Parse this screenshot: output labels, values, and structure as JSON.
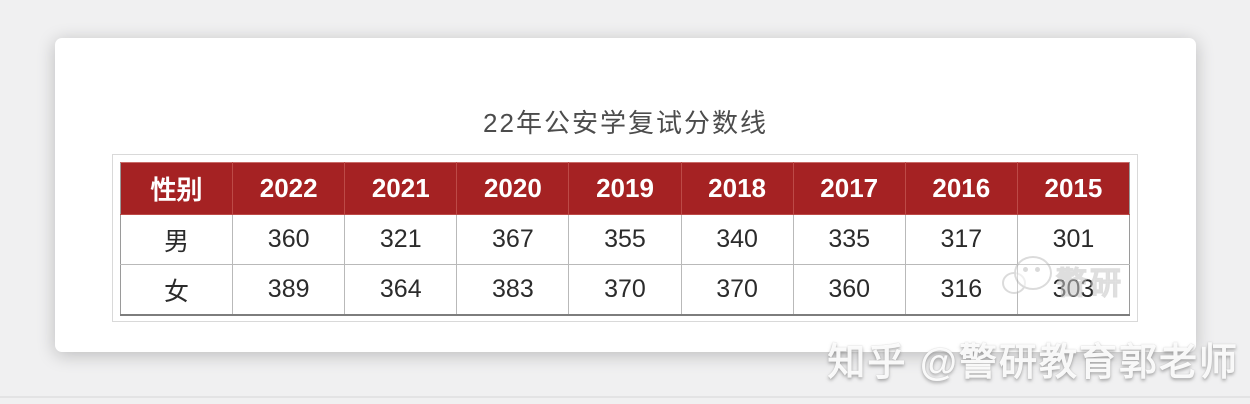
{
  "page": {
    "background": "#f0f0f1"
  },
  "card": {
    "title": "22年公安学复试分数线"
  },
  "table": {
    "columns": [
      "性别",
      "2022",
      "2021",
      "2020",
      "2019",
      "2018",
      "2017",
      "2016",
      "2015"
    ],
    "rows": [
      {
        "label": "男",
        "values": [
          "360",
          "321",
          "367",
          "355",
          "340",
          "335",
          "317",
          "301"
        ]
      },
      {
        "label": "女",
        "values": [
          "389",
          "364",
          "383",
          "370",
          "370",
          "360",
          "316",
          "303"
        ]
      }
    ]
  },
  "watermarks": {
    "zhihu_text": "知乎 @警研教育郭老师",
    "logo_text": "警研",
    "logo_icon": "panda-chat-bubbles-icon"
  },
  "colors": {
    "page_bg": "#f0f0f1",
    "header_bg": "#a52223",
    "header_text": "#ffffff",
    "body_text": "#2b2b2b",
    "cell_border": "#b9b9b9",
    "frame_border": "#d9d9d9",
    "title_text": "#4c4c4c"
  },
  "chart_data": {
    "type": "table",
    "title": "22年公安学复试分数线",
    "row_header_label": "性别",
    "categories": [
      "2022",
      "2021",
      "2020",
      "2019",
      "2018",
      "2017",
      "2016",
      "2015"
    ],
    "series": [
      {
        "name": "男",
        "values": [
          360,
          321,
          367,
          355,
          340,
          335,
          317,
          301
        ]
      },
      {
        "name": "女",
        "values": [
          389,
          364,
          383,
          370,
          370,
          360,
          316,
          303
        ]
      }
    ]
  }
}
